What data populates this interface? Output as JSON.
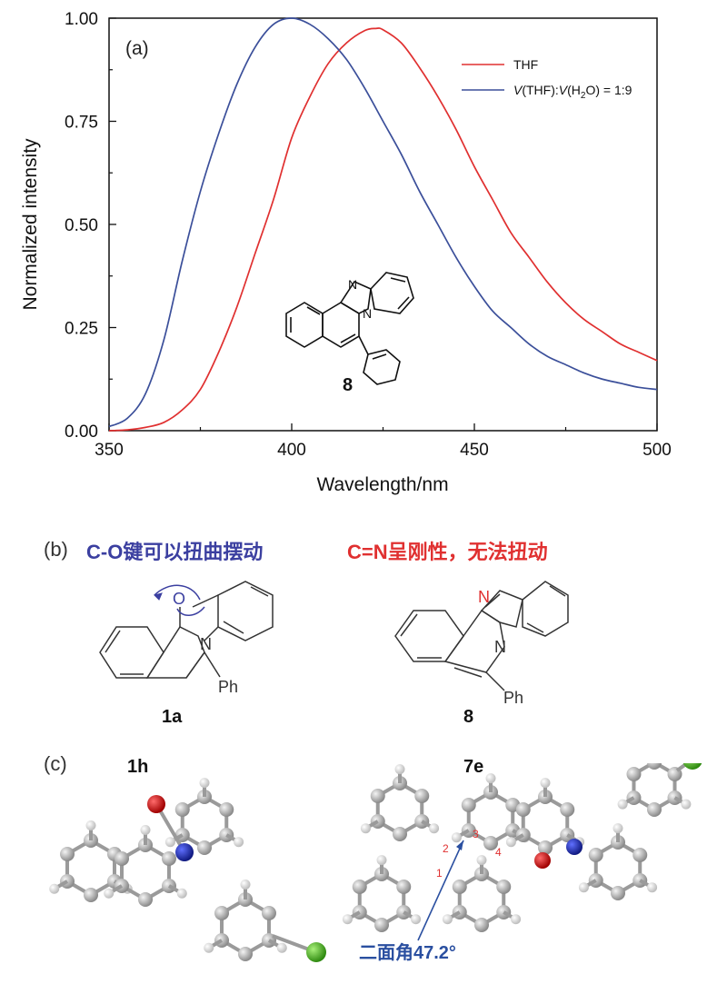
{
  "chart_data": {
    "type": "line",
    "panel_label": "(a)",
    "xlabel": "Wavelength/nm",
    "ylabel": "Normalized intensity",
    "xlim": [
      350,
      500
    ],
    "ylim": [
      0,
      1.0
    ],
    "x_ticks": [
      "350",
      "400",
      "450",
      "500"
    ],
    "y_ticks": [
      "0.00",
      "0.25",
      "0.50",
      "0.75",
      "1.00"
    ],
    "legend_position": "top-right",
    "series": [
      {
        "name": "THF",
        "color": "#e03030",
        "x": [
          350,
          355,
          360,
          365,
          370,
          375,
          380,
          385,
          390,
          395,
          400,
          405,
          410,
          415,
          420,
          423,
          425,
          430,
          435,
          440,
          445,
          450,
          455,
          460,
          465,
          470,
          475,
          480,
          485,
          490,
          495,
          500
        ],
        "y": [
          0.0,
          0.002,
          0.008,
          0.02,
          0.05,
          0.1,
          0.19,
          0.3,
          0.43,
          0.56,
          0.71,
          0.81,
          0.89,
          0.94,
          0.97,
          0.975,
          0.972,
          0.94,
          0.88,
          0.81,
          0.73,
          0.64,
          0.56,
          0.48,
          0.42,
          0.36,
          0.31,
          0.27,
          0.24,
          0.21,
          0.19,
          0.17
        ]
      },
      {
        "name": "V(THF):V(H2O) = 1:9",
        "color": "#3b4f9a",
        "x": [
          350,
          355,
          360,
          365,
          370,
          375,
          380,
          385,
          390,
          395,
          400,
          405,
          410,
          415,
          420,
          425,
          430,
          435,
          440,
          445,
          450,
          455,
          460,
          465,
          470,
          475,
          480,
          485,
          490,
          495,
          500
        ],
        "y": [
          0.01,
          0.03,
          0.09,
          0.22,
          0.41,
          0.58,
          0.72,
          0.84,
          0.93,
          0.985,
          1.0,
          0.985,
          0.95,
          0.9,
          0.83,
          0.75,
          0.67,
          0.58,
          0.5,
          0.42,
          0.35,
          0.29,
          0.25,
          0.21,
          0.18,
          0.16,
          0.14,
          0.125,
          0.115,
          0.105,
          0.1
        ]
      }
    ],
    "compound_label": "8"
  },
  "legend": {
    "thf": "THF",
    "mix_v1": "V",
    "mix_mid": "(THF):",
    "mix_v2": "V",
    "mix_h": "(H",
    "mix_sub": "2",
    "mix_end": "O) = 1:9"
  },
  "panel_b": {
    "label": "(b)",
    "left_title": "C-O键可以扭曲摆动",
    "right_title": "C=N呈刚性，无法扭动",
    "left_compound": "1a",
    "right_compound": "8",
    "atom_o": "O",
    "atom_n": "N",
    "atom_n2": "N",
    "atom_n3": "N",
    "substituent": "Ph",
    "substituent2": "Ph",
    "title_color_left": "#3b3fa0",
    "title_color_right": "#e03030"
  },
  "panel_c": {
    "label": "(c)",
    "left_compound": "1h",
    "right_compound": "7e",
    "dihedral_label": "二面角47.2°",
    "atom_numbers": [
      "1",
      "2",
      "3",
      "4"
    ]
  }
}
